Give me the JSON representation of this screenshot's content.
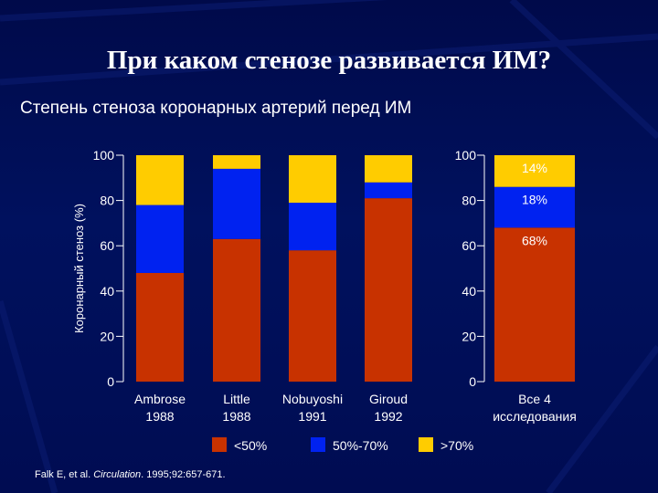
{
  "slide": {
    "title": "При каком стенозе развивается ИМ?",
    "subtitle": "Степень стеноза коронарных артерий перед ИМ",
    "citation": {
      "authors": "Falk E, et al.",
      "journal": "Circulation",
      "rest": "1995;92:657-671."
    }
  },
  "chart_data": [
    {
      "type": "bar",
      "stacked": true,
      "ylabel": "Коронарный стеноз (%)",
      "ylim": [
        0,
        100
      ],
      "yticks": [
        0,
        20,
        40,
        60,
        80,
        100
      ],
      "categories": [
        [
          "Ambrose",
          "1988"
        ],
        [
          "Little",
          "1988"
        ],
        [
          "Nobuyoshi",
          "1991"
        ],
        [
          "Giroud",
          "1992"
        ]
      ],
      "series": [
        {
          "name": "<50%",
          "color": "#c83200",
          "values": [
            48,
            63,
            58,
            81
          ]
        },
        {
          "name": "50%-70%",
          "color": "#0022f0",
          "values": [
            30,
            31,
            21,
            7
          ]
        },
        {
          "name": ">70%",
          "color": "#ffcc00",
          "values": [
            22,
            6,
            21,
            12
          ]
        }
      ],
      "legend": "bottom"
    },
    {
      "type": "bar",
      "stacked": true,
      "ylim": [
        0,
        100
      ],
      "yticks": [
        0,
        20,
        40,
        60,
        80,
        100
      ],
      "categories": [
        [
          "Все 4",
          "исследования"
        ]
      ],
      "series": [
        {
          "name": "<50%",
          "color": "#c83200",
          "values": [
            68
          ],
          "label": "68%"
        },
        {
          "name": "50%-70%",
          "color": "#0022f0",
          "values": [
            18
          ],
          "label": "18%"
        },
        {
          "name": ">70%",
          "color": "#ffcc00",
          "values": [
            14
          ],
          "label": "14%"
        }
      ]
    }
  ]
}
